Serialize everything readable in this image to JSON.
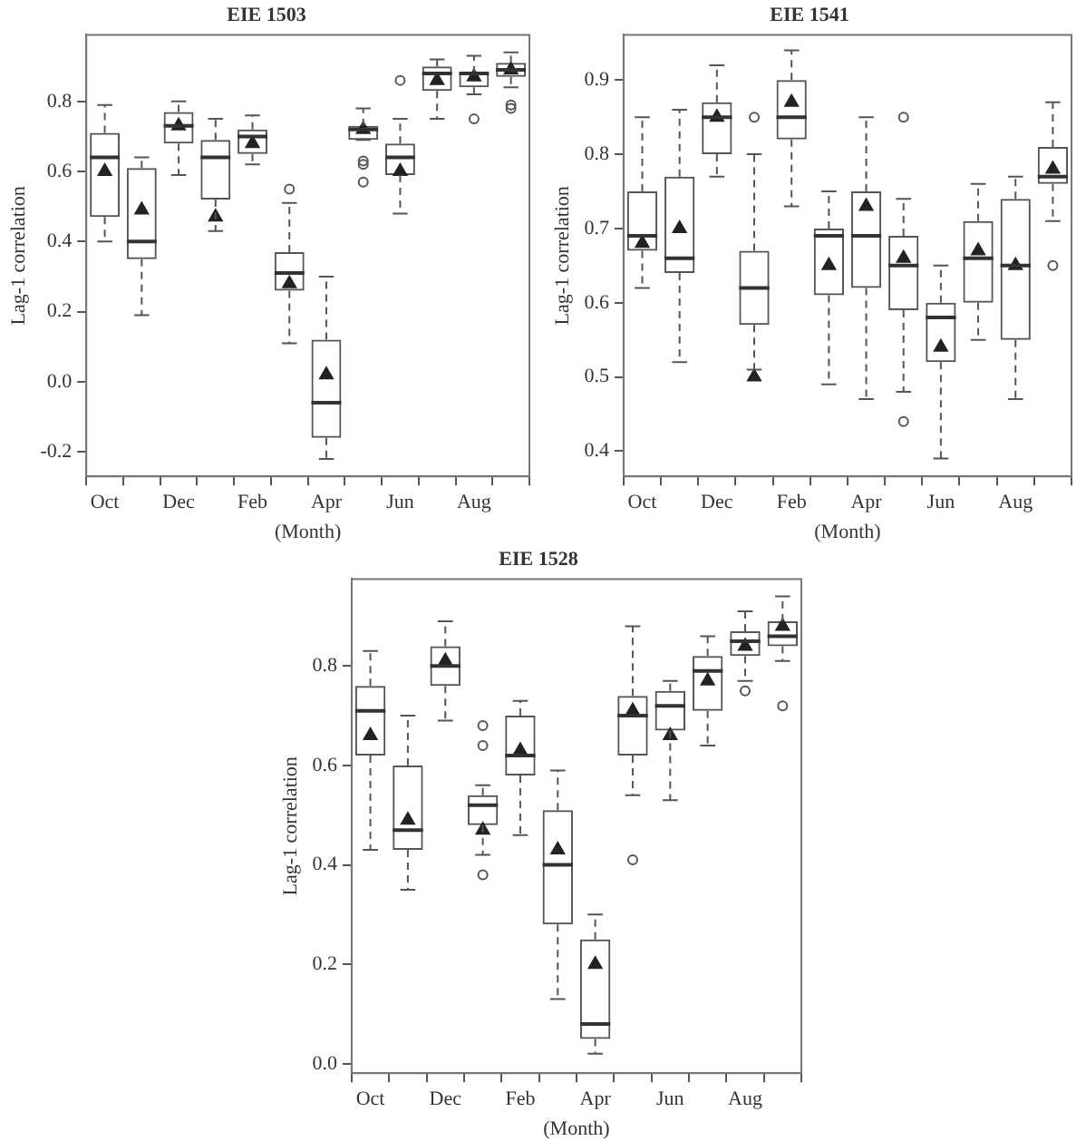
{
  "chart_data": [
    {
      "type": "box",
      "title": "EIE 1503",
      "xlabel": "(Month)",
      "ylabel": "Lag-1 correlation",
      "color": "#555555",
      "categories": [
        "Oct",
        null,
        "Dec",
        null,
        "Feb",
        null,
        "Apr",
        null,
        "Jun",
        null,
        "Aug",
        null
      ],
      "ylim": [
        -0.27,
        0.99
      ],
      "yticks": [
        -0.2,
        {
          "value": 0,
          "label": "0.0"
        },
        0.2,
        0.4,
        0.6,
        0.8
      ],
      "boxes": [
        {
          "low": 0.4,
          "q1": 0.47,
          "median": 0.64,
          "q3": 0.71,
          "high": 0.79,
          "mean": 0.6
        },
        {
          "low": 0.19,
          "q1": 0.35,
          "median": 0.4,
          "q3": 0.61,
          "high": 0.64,
          "mean": 0.49
        },
        {
          "low": 0.59,
          "q1": 0.68,
          "median": 0.73,
          "q3": 0.77,
          "high": 0.8,
          "mean": 0.73
        },
        {
          "low": 0.43,
          "q1": 0.52,
          "median": 0.64,
          "q3": 0.69,
          "high": 0.75,
          "mean": 0.47
        },
        {
          "low": 0.62,
          "q1": 0.65,
          "median": 0.7,
          "q3": 0.72,
          "high": 0.76,
          "mean": 0.68
        },
        {
          "low": 0.11,
          "q1": 0.26,
          "median": 0.31,
          "q3": 0.37,
          "high": 0.51,
          "mean": 0.28,
          "outliers": [
            0.55
          ]
        },
        {
          "low": -0.22,
          "q1": -0.16,
          "median": -0.06,
          "q3": 0.12,
          "high": 0.3,
          "mean": 0.02
        },
        {
          "low": 0.69,
          "q1": 0.69,
          "median": 0.72,
          "q3": 0.73,
          "high": 0.78,
          "mean": 0.72,
          "outliers": [
            0.63,
            0.62,
            0.57
          ]
        },
        {
          "low": 0.48,
          "q1": 0.59,
          "median": 0.64,
          "q3": 0.68,
          "high": 0.75,
          "mean": 0.6,
          "outliers": [
            0.86
          ]
        },
        {
          "low": 0.75,
          "q1": 0.83,
          "median": 0.88,
          "q3": 0.9,
          "high": 0.92,
          "mean": 0.86
        },
        {
          "low": 0.82,
          "q1": 0.84,
          "median": 0.88,
          "q3": 0.88,
          "high": 0.93,
          "mean": 0.87,
          "outliers": [
            0.75
          ]
        },
        {
          "low": 0.84,
          "q1": 0.87,
          "median": 0.89,
          "q3": 0.91,
          "high": 0.94,
          "mean": 0.89,
          "outliers": [
            0.79,
            0.78
          ]
        }
      ]
    },
    {
      "type": "box",
      "title": "EIE 1541",
      "xlabel": "(Month)",
      "ylabel": "Lag-1 correlation",
      "color": "#555555",
      "categories": [
        "Oct",
        null,
        "Dec",
        null,
        "Feb",
        null,
        "Apr",
        null,
        "Jun",
        null,
        "Aug",
        null
      ],
      "ylim": [
        0.366,
        0.961
      ],
      "yticks": [
        0.4,
        0.5,
        0.6,
        0.7,
        0.8,
        0.9
      ],
      "boxes": [
        {
          "low": 0.62,
          "q1": 0.67,
          "median": 0.69,
          "q3": 0.75,
          "high": 0.85,
          "mean": 0.68
        },
        {
          "low": 0.52,
          "q1": 0.64,
          "median": 0.66,
          "q3": 0.77,
          "high": 0.86,
          "mean": 0.7
        },
        {
          "low": 0.77,
          "q1": 0.8,
          "median": 0.85,
          "q3": 0.87,
          "high": 0.92,
          "mean": 0.85
        },
        {
          "low": 0.51,
          "q1": 0.57,
          "median": 0.62,
          "q3": 0.67,
          "high": 0.8,
          "mean": 0.5,
          "outliers": [
            0.85
          ]
        },
        {
          "low": 0.73,
          "q1": 0.82,
          "median": 0.85,
          "q3": 0.9,
          "high": 0.94,
          "mean": 0.87
        },
        {
          "low": 0.49,
          "q1": 0.61,
          "median": 0.69,
          "q3": 0.7,
          "high": 0.75,
          "mean": 0.65
        },
        {
          "low": 0.47,
          "q1": 0.62,
          "median": 0.69,
          "q3": 0.75,
          "high": 0.85,
          "mean": 0.73
        },
        {
          "low": 0.48,
          "q1": 0.59,
          "median": 0.65,
          "q3": 0.69,
          "high": 0.74,
          "mean": 0.66,
          "outliers": [
            0.85,
            0.44
          ]
        },
        {
          "low": 0.39,
          "q1": 0.52,
          "median": 0.58,
          "q3": 0.6,
          "high": 0.65,
          "mean": 0.54
        },
        {
          "low": 0.55,
          "q1": 0.6,
          "median": 0.66,
          "q3": 0.71,
          "high": 0.76,
          "mean": 0.67
        },
        {
          "low": 0.47,
          "q1": 0.55,
          "median": 0.65,
          "q3": 0.74,
          "high": 0.77,
          "mean": 0.65
        },
        {
          "low": 0.71,
          "q1": 0.76,
          "median": 0.77,
          "q3": 0.81,
          "high": 0.87,
          "mean": 0.78,
          "outliers": [
            0.65
          ]
        }
      ]
    },
    {
      "type": "box",
      "title": "EIE 1528",
      "xlabel": "(Month)",
      "ylabel": "Lag-1 correlation",
      "color": "#555555",
      "categories": [
        "Oct",
        null,
        "Dec",
        null,
        "Feb",
        null,
        "Apr",
        null,
        "Jun",
        null,
        "Aug",
        null
      ],
      "ylim": [
        -0.019,
        0.975
      ],
      "yticks": [
        {
          "value": 0,
          "label": "0.0"
        },
        0.2,
        0.4,
        0.6,
        0.8
      ],
      "boxes": [
        {
          "low": 0.43,
          "q1": 0.62,
          "median": 0.71,
          "q3": 0.76,
          "high": 0.83,
          "mean": 0.66
        },
        {
          "low": 0.35,
          "q1": 0.43,
          "median": 0.47,
          "q3": 0.6,
          "high": 0.7,
          "mean": 0.49
        },
        {
          "low": 0.69,
          "q1": 0.76,
          "median": 0.8,
          "q3": 0.84,
          "high": 0.89,
          "mean": 0.81
        },
        {
          "low": 0.42,
          "q1": 0.48,
          "median": 0.52,
          "q3": 0.54,
          "high": 0.56,
          "mean": 0.47,
          "outliers": [
            0.68,
            0.64,
            0.38
          ]
        },
        {
          "low": 0.46,
          "q1": 0.58,
          "median": 0.62,
          "q3": 0.7,
          "high": 0.73,
          "mean": 0.63
        },
        {
          "low": 0.13,
          "q1": 0.28,
          "median": 0.4,
          "q3": 0.51,
          "high": 0.59,
          "mean": 0.43
        },
        {
          "low": 0.02,
          "q1": 0.05,
          "median": 0.08,
          "q3": 0.25,
          "high": 0.3,
          "mean": 0.2
        },
        {
          "low": 0.54,
          "q1": 0.62,
          "median": 0.7,
          "q3": 0.74,
          "high": 0.88,
          "mean": 0.71,
          "outliers": [
            0.41
          ]
        },
        {
          "low": 0.53,
          "q1": 0.67,
          "median": 0.72,
          "q3": 0.75,
          "high": 0.77,
          "mean": 0.66
        },
        {
          "low": 0.64,
          "q1": 0.71,
          "median": 0.79,
          "q3": 0.82,
          "high": 0.86,
          "mean": 0.77
        },
        {
          "low": 0.77,
          "q1": 0.82,
          "median": 0.85,
          "q3": 0.87,
          "high": 0.91,
          "mean": 0.84,
          "outliers": [
            0.75
          ]
        },
        {
          "low": 0.81,
          "q1": 0.84,
          "median": 0.86,
          "q3": 0.89,
          "high": 0.94,
          "mean": 0.88,
          "outliers": [
            0.72
          ]
        }
      ]
    }
  ]
}
